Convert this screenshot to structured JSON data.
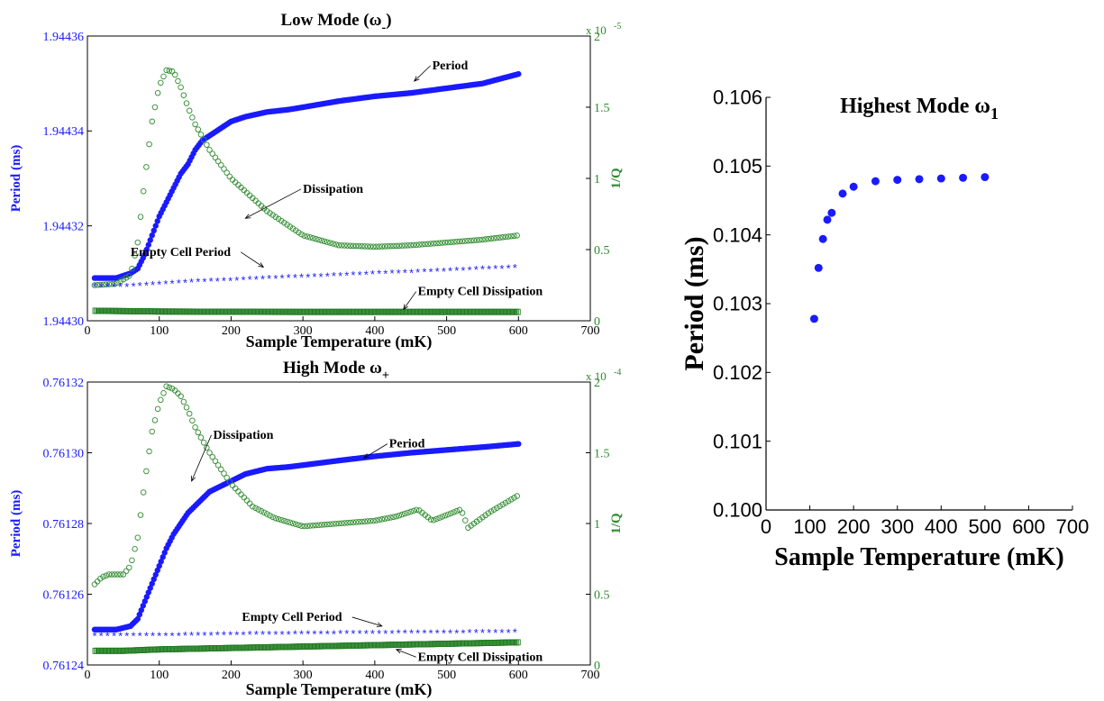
{
  "colors": {
    "period": "#1a1aff",
    "dissipation": "#2e8b2e",
    "empty_diss": "#1e7a1e",
    "axis": "#000000"
  },
  "chart_data": [
    {
      "id": "low",
      "type": "scatter",
      "title": "Low Mode (ω",
      "title_sub": "-",
      "title_end": ")",
      "xlabel": "Sample Temperature (mK)",
      "ylabel": "Period (ms)",
      "y2label": "1/Q",
      "xlim": [
        0,
        700
      ],
      "ylim": [
        1.9443,
        1.94436
      ],
      "y2lim": [
        0,
        2
      ],
      "y2_exponent_base": "x 10",
      "y2_exponent_power": "-5",
      "xticks": [
        0,
        100,
        200,
        300,
        400,
        500,
        600,
        700
      ],
      "xtick_labels": [
        "0",
        "100",
        "200",
        "300",
        "400",
        "500",
        "600",
        "700"
      ],
      "yticks": [
        1.9443,
        1.94432,
        1.94434,
        1.94436
      ],
      "ytick_labels": [
        "1.94430",
        "1.94432",
        "1.94434",
        "1.94436"
      ],
      "y2ticks": [
        0,
        0.5,
        1,
        1.5,
        2
      ],
      "y2tick_labels": [
        "0",
        "0.5",
        "1",
        "1.5",
        "2"
      ],
      "series": [
        {
          "name": "Period",
          "axis": "y",
          "marker": "dot",
          "x": [
            10,
            40,
            60,
            70,
            80,
            90,
            100,
            110,
            120,
            130,
            140,
            150,
            160,
            170,
            180,
            200,
            220,
            250,
            280,
            300,
            350,
            400,
            450,
            500,
            550,
            600
          ],
          "y": [
            1.944309,
            1.944309,
            1.94431,
            1.944311,
            1.944314,
            1.944318,
            1.944322,
            1.944325,
            1.944328,
            1.944331,
            1.944333,
            1.944336,
            1.944338,
            1.944339,
            1.94434,
            1.944342,
            1.944343,
            1.944344,
            1.9443445,
            1.944345,
            1.9443463,
            1.9443473,
            1.944348,
            1.944349,
            1.94435,
            1.944352
          ]
        },
        {
          "name": "Dissipation",
          "axis": "y2",
          "marker": "circle",
          "x": [
            10,
            40,
            60,
            70,
            80,
            90,
            100,
            110,
            120,
            130,
            140,
            150,
            170,
            200,
            250,
            300,
            350,
            400,
            450,
            500,
            550,
            600
          ],
          "y": [
            0.25,
            0.26,
            0.32,
            0.55,
            1.0,
            1.4,
            1.65,
            1.76,
            1.75,
            1.64,
            1.5,
            1.38,
            1.2,
            1.0,
            0.77,
            0.6,
            0.53,
            0.52,
            0.53,
            0.55,
            0.57,
            0.6
          ]
        },
        {
          "name": "Empty Cell Period",
          "axis": "y",
          "marker": "star",
          "x": [
            10,
            50,
            100,
            150,
            200,
            250,
            300,
            350,
            400,
            450,
            500,
            550,
            600
          ],
          "y": [
            1.944307,
            1.944307,
            1.9443075,
            1.944308,
            1.9443083,
            1.9443087,
            1.944309,
            1.9443093,
            1.9443097,
            1.94431,
            1.9443103,
            1.9443107,
            1.944311
          ]
        },
        {
          "name": "Empty Cell Dissipation",
          "axis": "y2",
          "marker": "square",
          "x": [
            10,
            100,
            200,
            300,
            400,
            500,
            600
          ],
          "y": [
            0.07,
            0.065,
            0.063,
            0.062,
            0.062,
            0.062,
            0.062
          ]
        }
      ],
      "annotations": [
        {
          "text": "Period",
          "at": [
            480,
            1.944353
          ],
          "arrow_to": [
            455,
            1.9443505
          ]
        },
        {
          "text": "Dissipation",
          "at": [
            300,
            0.9
          ],
          "axis": "y2",
          "arrow_to": [
            220,
            0.72
          ]
        },
        {
          "text": "Empty Cell Period",
          "at": [
            60,
            1.9443137
          ],
          "arrow_to": [
            245,
            1.9443113
          ]
        },
        {
          "text": "Empty Cell Dissipation",
          "at": [
            460,
            0.18
          ],
          "axis": "y2",
          "arrow_to": [
            440,
            0.08
          ]
        }
      ]
    },
    {
      "id": "high",
      "type": "scatter",
      "title": "High Mode ω",
      "title_sub": "+",
      "title_end": "",
      "xlabel": "Sample Temperature (mK)",
      "ylabel": "Period (ms)",
      "y2label": "1/Q",
      "xlim": [
        0,
        700
      ],
      "ylim": [
        0.76124,
        0.76132
      ],
      "y2lim": [
        0,
        2
      ],
      "y2_exponent_base": "x 10",
      "y2_exponent_power": "-4",
      "xticks": [
        0,
        100,
        200,
        300,
        400,
        500,
        600,
        700
      ],
      "xtick_labels": [
        "0",
        "100",
        "200",
        "300",
        "400",
        "500",
        "600",
        "700"
      ],
      "yticks": [
        0.76124,
        0.76126,
        0.76128,
        0.7613,
        0.76132
      ],
      "ytick_labels": [
        "0.76124",
        "0.76126",
        "0.76128",
        "0.76130",
        "0.76132"
      ],
      "y2ticks": [
        0,
        0.5,
        1,
        1.5,
        2
      ],
      "y2tick_labels": [
        "0",
        "0.5",
        "1",
        "1.5",
        "2"
      ],
      "series": [
        {
          "name": "Period",
          "axis": "y",
          "marker": "dot",
          "x": [
            10,
            40,
            60,
            70,
            80,
            90,
            100,
            110,
            120,
            130,
            140,
            150,
            160,
            170,
            180,
            200,
            220,
            250,
            280,
            300,
            350,
            400,
            450,
            500,
            550,
            600
          ],
          "y": [
            0.76125,
            0.76125,
            0.761251,
            0.761253,
            0.761258,
            0.761263,
            0.761268,
            0.761273,
            0.761277,
            0.76128,
            0.761283,
            0.761285,
            0.761287,
            0.761289,
            0.76129,
            0.761292,
            0.761294,
            0.7612955,
            0.761296,
            0.7612965,
            0.7612978,
            0.761299,
            0.7613,
            0.7613008,
            0.7613016,
            0.7613025
          ]
        },
        {
          "name": "Dissipation",
          "axis": "y2",
          "marker": "circle",
          "x": [
            10,
            20,
            30,
            40,
            50,
            60,
            70,
            80,
            90,
            100,
            110,
            120,
            130,
            140,
            150,
            170,
            200,
            230,
            260,
            300,
            350,
            400,
            430,
            460,
            480,
            520,
            530,
            560,
            600
          ],
          "y": [
            0.57,
            0.62,
            0.64,
            0.64,
            0.64,
            0.7,
            0.9,
            1.3,
            1.65,
            1.85,
            1.97,
            1.95,
            1.9,
            1.8,
            1.68,
            1.5,
            1.28,
            1.12,
            1.04,
            0.98,
            1.0,
            1.02,
            1.05,
            1.1,
            1.02,
            1.1,
            0.97,
            1.08,
            1.2
          ]
        },
        {
          "name": "Empty Cell Period",
          "axis": "y",
          "marker": "star",
          "x": [
            10,
            100,
            200,
            300,
            400,
            500,
            600
          ],
          "y": [
            0.761248,
            0.761248,
            0.7612483,
            0.7612485,
            0.7612487,
            0.7612488,
            0.761249
          ]
        },
        {
          "name": "Empty Cell Dissipation",
          "axis": "y2",
          "marker": "square",
          "x": [
            10,
            50,
            100,
            200,
            300,
            400,
            500,
            600
          ],
          "y": [
            0.1,
            0.1,
            0.11,
            0.12,
            0.13,
            0.14,
            0.15,
            0.16
          ]
        }
      ],
      "annotations": [
        {
          "text": "Period",
          "at": [
            420,
            0.7613015
          ],
          "arrow_to": [
            385,
            0.7612985
          ]
        },
        {
          "text": "Dissipation",
          "at": [
            175,
            1.6
          ],
          "axis": "y2",
          "arrow_to": [
            145,
            1.3
          ]
        },
        {
          "text": "Empty Cell Period",
          "at": [
            215,
            0.7612525
          ],
          "arrow_to": [
            410,
            0.761251
          ]
        },
        {
          "text": "Empty Cell Dissipation",
          "at": [
            460,
            0.03
          ],
          "axis": "y2",
          "arrow_to": [
            430,
            0.11
          ]
        }
      ]
    },
    {
      "id": "highest",
      "type": "scatter",
      "title": "Highest Mode ω",
      "title_sub": "1",
      "title_end": "",
      "xlabel": "Sample Temperature (mK)",
      "ylabel": "Period (ms)",
      "xlim": [
        0,
        700
      ],
      "ylim": [
        0.1,
        0.106
      ],
      "xticks": [
        0,
        100,
        200,
        300,
        400,
        500,
        600,
        700
      ],
      "xtick_labels": [
        "0",
        "100",
        "200",
        "300",
        "400",
        "500",
        "600",
        "700"
      ],
      "yticks": [
        0.1,
        0.101,
        0.102,
        0.103,
        0.104,
        0.105,
        0.106
      ],
      "ytick_labels": [
        "0.100",
        "0.101",
        "0.102",
        "0.103",
        "0.104",
        "0.105",
        "0.106"
      ],
      "series": [
        {
          "name": "",
          "axis": "y",
          "marker": "dot",
          "x": [
            110,
            120,
            130,
            140,
            150,
            175,
            200,
            250,
            300,
            350,
            400,
            450,
            500
          ],
          "y": [
            0.10278,
            0.10352,
            0.10394,
            0.10422,
            0.10432,
            0.1046,
            0.1047,
            0.10478,
            0.1048,
            0.10481,
            0.10482,
            0.10483,
            0.10484
          ]
        }
      ]
    }
  ]
}
